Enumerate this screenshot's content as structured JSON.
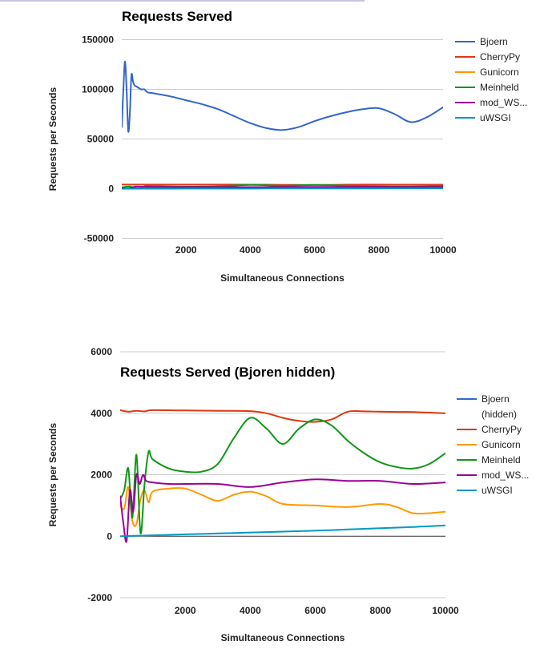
{
  "chart_data": [
    {
      "type": "line",
      "title": "Requests Served",
      "xlabel": "Simultaneous Connections",
      "ylabel": "Requests per Seconds",
      "xlim": [
        0,
        10000
      ],
      "ylim": [
        -50000,
        150000
      ],
      "x_ticks": [
        "2000",
        "4000",
        "6000",
        "8000",
        "10000"
      ],
      "y_ticks": [
        "150000",
        "100000",
        "50000",
        "0",
        "-50000"
      ],
      "x_tick_values": [
        2000,
        4000,
        6000,
        8000,
        10000
      ],
      "y_tick_values": [
        150000,
        100000,
        50000,
        0,
        -50000
      ],
      "legend": [
        "Bjoern",
        "CherryPy",
        "Gunicorn",
        "Meinheld",
        "mod_WS...",
        "uWSGI"
      ],
      "series": [
        {
          "name": "Bjoern",
          "color": "#3366cc",
          "x": [
            0,
            50,
            100,
            150,
            200,
            250,
            300,
            350,
            400,
            500,
            600,
            700,
            800,
            1000,
            1500,
            2000,
            2500,
            3000,
            3500,
            4000,
            4500,
            5000,
            5500,
            6000,
            6500,
            7000,
            7500,
            8000,
            8500,
            9000,
            9500,
            10000
          ],
          "y": [
            62000,
            100000,
            128000,
            100000,
            58000,
            75000,
            114000,
            108000,
            104000,
            102000,
            100000,
            100000,
            97000,
            96000,
            93000,
            89000,
            85000,
            80000,
            73000,
            66000,
            61000,
            59000,
            62000,
            68000,
            73000,
            77000,
            80000,
            81000,
            75000,
            67000,
            72000,
            82000
          ]
        },
        {
          "name": "CherryPy",
          "color": "#dc3912",
          "x": [
            0,
            500,
            1000,
            2000,
            3000,
            4000,
            5000,
            6000,
            7000,
            8000,
            9000,
            10000
          ],
          "y": [
            4100,
            4100,
            4100,
            4100,
            4100,
            4050,
            3900,
            3750,
            4050,
            4100,
            4050,
            4050
          ]
        },
        {
          "name": "Gunicorn",
          "color": "#ff9900",
          "x": [
            0,
            250,
            500,
            750,
            1000,
            2000,
            3000,
            4000,
            5000,
            6000,
            7000,
            8000,
            9000,
            10000
          ],
          "y": [
            1000,
            1500,
            400,
            1200,
            1400,
            1550,
            1100,
            1450,
            1050,
            1000,
            950,
            1050,
            750,
            800
          ]
        },
        {
          "name": "Meinheld",
          "color": "#109618",
          "x": [
            0,
            250,
            500,
            750,
            1000,
            2000,
            3000,
            4000,
            5000,
            6000,
            7000,
            8000,
            9000,
            10000
          ],
          "y": [
            1200,
            2200,
            100,
            2700,
            2500,
            2100,
            2400,
            3850,
            3000,
            3800,
            3100,
            2400,
            2200,
            2700
          ]
        },
        {
          "name": "mod_WS...",
          "color": "#990099",
          "x": [
            0,
            200,
            400,
            600,
            800,
            1000,
            2000,
            3000,
            4000,
            5000,
            6000,
            7000,
            8000,
            9000,
            10000
          ],
          "y": [
            1300,
            -100,
            2000,
            2000,
            1800,
            1750,
            1700,
            1700,
            1600,
            1750,
            1850,
            1800,
            1800,
            1700,
            1750
          ]
        },
        {
          "name": "uWSGI",
          "color": "#0099c6",
          "x": [
            0,
            1000,
            2000,
            3000,
            4000,
            5000,
            6000,
            7000,
            8000,
            9000,
            10000
          ],
          "y": [
            0,
            30,
            60,
            90,
            120,
            150,
            180,
            220,
            260,
            300,
            350
          ]
        }
      ]
    },
    {
      "type": "line",
      "title": "Requests Served (Bjoren hidden)",
      "xlabel": "Simultaneous Connections",
      "ylabel": "Requests per Seconds",
      "xlim": [
        0,
        10000
      ],
      "ylim": [
        -2000,
        6000
      ],
      "x_ticks": [
        "2000",
        "4000",
        "6000",
        "8000",
        "10000"
      ],
      "y_ticks": [
        "6000",
        "4000",
        "2000",
        "0",
        "-2000"
      ],
      "x_tick_values": [
        2000,
        4000,
        6000,
        8000,
        10000
      ],
      "y_tick_values": [
        6000,
        4000,
        2000,
        0,
        -2000
      ],
      "legend": [
        "Bjoern",
        "CherryPy",
        "Gunicorn",
        "Meinheld",
        "mod_WS...",
        "uWSGI"
      ],
      "legend_first_line2": "(hidden)",
      "series": [
        {
          "name": "CherryPy",
          "color": "#dc3912",
          "x": [
            0,
            250,
            500,
            750,
            1000,
            2000,
            3000,
            4000,
            4500,
            5000,
            5500,
            6000,
            6500,
            7000,
            7500,
            8000,
            9000,
            10000
          ],
          "y": [
            4100,
            4050,
            4080,
            4060,
            4100,
            4090,
            4080,
            4070,
            4000,
            3850,
            3750,
            3720,
            3800,
            4050,
            4060,
            4050,
            4040,
            4000
          ]
        },
        {
          "name": "Gunicorn",
          "color": "#ff9900",
          "x": [
            0,
            125,
            250,
            375,
            500,
            625,
            750,
            875,
            1000,
            1500,
            2000,
            2500,
            3000,
            3500,
            4000,
            4500,
            5000,
            6000,
            7000,
            8000,
            8500,
            9000,
            9500,
            10000
          ],
          "y": [
            1000,
            900,
            1600,
            500,
            400,
            1200,
            1500,
            1100,
            1450,
            1550,
            1550,
            1350,
            1150,
            1350,
            1450,
            1300,
            1050,
            1000,
            950,
            1050,
            950,
            750,
            750,
            800
          ]
        },
        {
          "name": "Meinheld",
          "color": "#109618",
          "x": [
            0,
            125,
            250,
            375,
            500,
            625,
            750,
            875,
            1000,
            1500,
            2000,
            2500,
            3000,
            3500,
            4000,
            4500,
            5000,
            5500,
            6000,
            6500,
            7000,
            7500,
            8000,
            8500,
            9000,
            9500,
            10000
          ],
          "y": [
            1200,
            1500,
            2200,
            600,
            2650,
            100,
            1700,
            2750,
            2500,
            2200,
            2100,
            2100,
            2350,
            3200,
            3850,
            3500,
            3000,
            3500,
            3800,
            3600,
            3100,
            2700,
            2400,
            2250,
            2200,
            2350,
            2700
          ]
        },
        {
          "name": "mod_WS...",
          "color": "#990099",
          "x": [
            0,
            100,
            200,
            300,
            400,
            500,
            600,
            700,
            800,
            1000,
            1500,
            2000,
            3000,
            4000,
            5000,
            6000,
            7000,
            8000,
            9000,
            10000
          ],
          "y": [
            1300,
            400,
            -150,
            1500,
            800,
            2000,
            1700,
            2000,
            1800,
            1750,
            1700,
            1700,
            1700,
            1600,
            1750,
            1850,
            1800,
            1800,
            1700,
            1750
          ]
        },
        {
          "name": "uWSGI",
          "color": "#0099c6",
          "x": [
            0,
            1000,
            2000,
            3000,
            4000,
            5000,
            6000,
            7000,
            8000,
            9000,
            10000
          ],
          "y": [
            0,
            30,
            60,
            90,
            120,
            150,
            180,
            220,
            260,
            300,
            350
          ]
        }
      ]
    }
  ]
}
